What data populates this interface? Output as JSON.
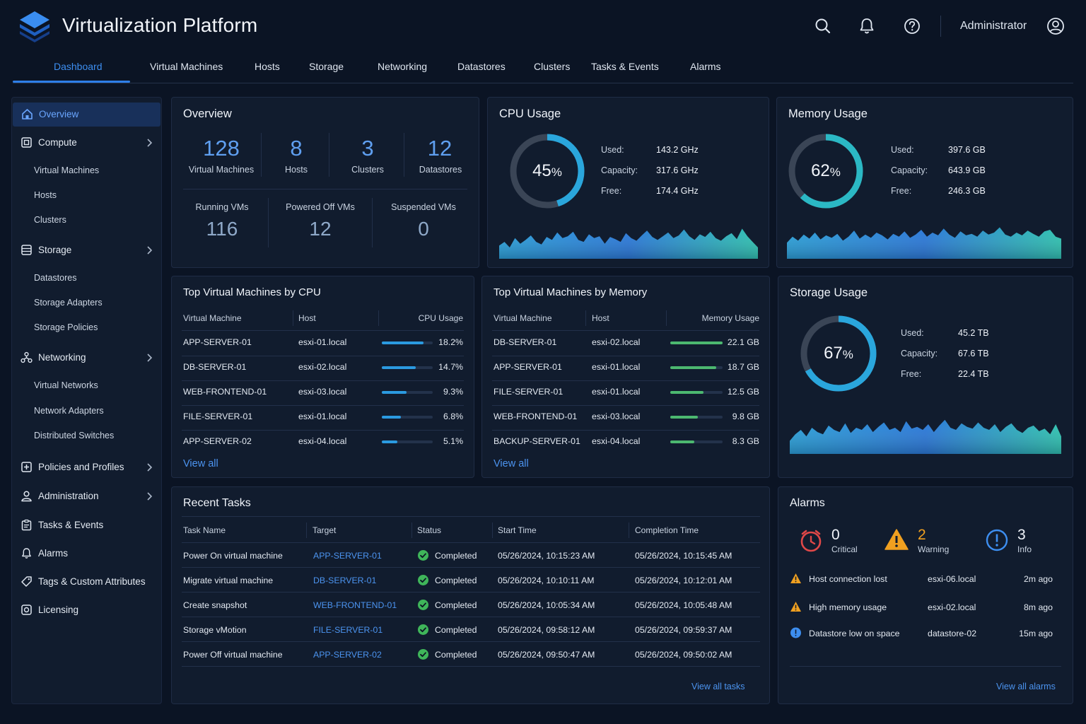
{
  "app": {
    "title": "Virtualization Platform",
    "user": "Administrator"
  },
  "header_icons": [
    "search-icon",
    "bell-icon",
    "help-icon",
    "user-avatar-icon"
  ],
  "tabs": [
    {
      "label": "Dashboard",
      "active": true
    },
    {
      "label": "Virtual Machines"
    },
    {
      "label": "Hosts"
    },
    {
      "label": "Storage"
    },
    {
      "label": "Networking"
    },
    {
      "label": "Datastores"
    },
    {
      "label": "Clusters"
    },
    {
      "label": "Tasks & Events"
    },
    {
      "label": "Alarms"
    }
  ],
  "sidebar": {
    "overview": "Overview",
    "compute": {
      "label": "Compute",
      "children": [
        "Virtual Machines",
        "Hosts",
        "Clusters"
      ]
    },
    "storage": {
      "label": "Storage",
      "children": [
        "Datastores",
        "Storage Adapters",
        "Storage Policies"
      ]
    },
    "networking": {
      "label": "Networking",
      "children": [
        "Virtual Networks",
        "Network Adapters",
        "Distributed Switches"
      ]
    },
    "policies": "Policies and Profiles",
    "administration": "Administration",
    "tasks": "Tasks & Events",
    "alarms": "Alarms",
    "tags": "Tags & Custom Attributes",
    "licensing": "Licensing"
  },
  "overview": {
    "title": "Overview",
    "stats": [
      {
        "value": "128",
        "label": "Virtual Machines"
      },
      {
        "value": "8",
        "label": "Hosts"
      },
      {
        "value": "3",
        "label": "Clusters"
      },
      {
        "value": "12",
        "label": "Datastores"
      }
    ],
    "vm_states": [
      {
        "label": "Running VMs",
        "value": "116"
      },
      {
        "label": "Powered Off VMs",
        "value": "12"
      },
      {
        "label": "Suspended VMs",
        "value": "0"
      }
    ]
  },
  "cpu": {
    "title": "CPU Usage",
    "percent": 45,
    "percent_text": "45",
    "percent_sign": "%",
    "rows": [
      {
        "k": "Used:",
        "v": "143.2 GHz"
      },
      {
        "k": "Capacity:",
        "v": "317.6 GHz"
      },
      {
        "k": "Free:",
        "v": "174.4 GHz"
      }
    ],
    "trend": [
      0.35,
      0.45,
      0.3,
      0.55,
      0.4,
      0.5,
      0.62,
      0.45,
      0.38,
      0.58,
      0.5,
      0.7,
      0.55,
      0.6,
      0.72,
      0.5,
      0.45,
      0.65,
      0.55,
      0.6,
      0.4,
      0.58,
      0.52,
      0.45,
      0.68,
      0.55,
      0.48,
      0.62,
      0.75,
      0.58,
      0.5,
      0.6,
      0.7,
      0.55,
      0.62,
      0.78,
      0.6,
      0.5,
      0.65,
      0.58,
      0.72,
      0.55,
      0.48,
      0.6,
      0.68,
      0.52,
      0.8,
      0.6,
      0.45,
      0.3
    ]
  },
  "memory": {
    "title": "Memory Usage",
    "percent": 62,
    "percent_text": "62",
    "percent_sign": "%",
    "rows": [
      {
        "k": "Used:",
        "v": "397.6 GB"
      },
      {
        "k": "Capacity:",
        "v": "643.9 GB"
      },
      {
        "k": "Free:",
        "v": "246.3 GB"
      }
    ],
    "trend": [
      0.4,
      0.55,
      0.45,
      0.6,
      0.5,
      0.65,
      0.48,
      0.58,
      0.52,
      0.62,
      0.45,
      0.55,
      0.7,
      0.5,
      0.6,
      0.52,
      0.65,
      0.58,
      0.48,
      0.62,
      0.55,
      0.68,
      0.52,
      0.6,
      0.72,
      0.55,
      0.65,
      0.58,
      0.75,
      0.6,
      0.52,
      0.68,
      0.58,
      0.62,
      0.55,
      0.7,
      0.6,
      0.65,
      0.78,
      0.6,
      0.55,
      0.65,
      0.58,
      0.7,
      0.62,
      0.55,
      0.68,
      0.72,
      0.55,
      0.5
    ]
  },
  "storage": {
    "title": "Storage Usage",
    "percent": 67,
    "percent_text": "67",
    "percent_sign": "%",
    "rows": [
      {
        "k": "Used:",
        "v": "45.2 TB"
      },
      {
        "k": "Capacity:",
        "v": "67.6 TB"
      },
      {
        "k": "Free:",
        "v": "22.4 TB"
      }
    ],
    "trend": [
      0.3,
      0.45,
      0.55,
      0.4,
      0.6,
      0.5,
      0.45,
      0.65,
      0.55,
      0.5,
      0.7,
      0.48,
      0.6,
      0.55,
      0.68,
      0.5,
      0.62,
      0.72,
      0.55,
      0.6,
      0.5,
      0.75,
      0.58,
      0.62,
      0.55,
      0.68,
      0.5,
      0.65,
      0.78,
      0.6,
      0.55,
      0.7,
      0.62,
      0.58,
      0.72,
      0.6,
      0.55,
      0.68,
      0.5,
      0.62,
      0.7,
      0.55,
      0.48,
      0.6,
      0.65,
      0.52,
      0.58,
      0.45,
      0.68,
      0.4
    ]
  },
  "top_cpu": {
    "title": "Top Virtual Machines by CPU",
    "headers": [
      "Virtual Machine",
      "Host",
      "CPU Usage"
    ],
    "rows": [
      {
        "vm": "APP-SERVER-01",
        "host": "esxi-01.local",
        "value": "18.2%",
        "frac": 0.82
      },
      {
        "vm": "DB-SERVER-01",
        "host": "esxi-02.local",
        "value": "14.7%",
        "frac": 0.66
      },
      {
        "vm": "WEB-FRONTEND-01",
        "host": "esxi-03.local",
        "value": "9.3%",
        "frac": 0.49
      },
      {
        "vm": "FILE-SERVER-01",
        "host": "esxi-01.local",
        "value": "6.8%",
        "frac": 0.38
      },
      {
        "vm": "APP-SERVER-02",
        "host": "esxi-04.local",
        "value": "5.1%",
        "frac": 0.31
      }
    ],
    "view_all": "View all"
  },
  "top_mem": {
    "title": "Top Virtual Machines by Memory",
    "headers": [
      "Virtual Machine",
      "Host",
      "Memory Usage"
    ],
    "rows": [
      {
        "vm": "DB-SERVER-01",
        "host": "esxi-02.local",
        "value": "22.1 GB",
        "frac": 1.0
      },
      {
        "vm": "APP-SERVER-01",
        "host": "esxi-01.local",
        "value": "18.7 GB",
        "frac": 0.88
      },
      {
        "vm": "FILE-SERVER-01",
        "host": "esxi-01.local",
        "value": "12.5 GB",
        "frac": 0.63
      },
      {
        "vm": "WEB-FRONTEND-01",
        "host": "esxi-03.local",
        "value": "9.8 GB",
        "frac": 0.53
      },
      {
        "vm": "BACKUP-SERVER-01",
        "host": "esxi-04.local",
        "value": "8.3 GB",
        "frac": 0.46
      }
    ],
    "view_all": "View all"
  },
  "tasks": {
    "title": "Recent Tasks",
    "headers": [
      "Task Name",
      "Target",
      "Status",
      "Start Time",
      "Completion Time"
    ],
    "rows": [
      {
        "name": "Power On virtual machine",
        "target": "APP-SERVER-01",
        "status": "Completed",
        "start": "05/26/2024, 10:15:23 AM",
        "end": "05/26/2024, 10:15:45 AM"
      },
      {
        "name": "Migrate virtual machine",
        "target": "DB-SERVER-01",
        "status": "Completed",
        "start": "05/26/2024, 10:10:11 AM",
        "end": "05/26/2024, 10:12:01 AM"
      },
      {
        "name": "Create snapshot",
        "target": "WEB-FRONTEND-01",
        "status": "Completed",
        "start": "05/26/2024, 10:05:34 AM",
        "end": "05/26/2024, 10:05:48 AM"
      },
      {
        "name": "Storage vMotion",
        "target": "FILE-SERVER-01",
        "status": "Completed",
        "start": "05/26/2024, 09:58:12 AM",
        "end": "05/26/2024, 09:59:37 AM"
      },
      {
        "name": "Power Off virtual machine",
        "target": "APP-SERVER-02",
        "status": "Completed",
        "start": "05/26/2024, 09:50:47 AM",
        "end": "05/26/2024, 09:50:02 AM"
      }
    ],
    "view_all": "View all tasks"
  },
  "alarms": {
    "title": "Alarms",
    "summary": [
      {
        "count": "0",
        "label": "Critical",
        "color": "#e04848"
      },
      {
        "count": "2",
        "label": "Warning",
        "color": "#f0a020"
      },
      {
        "count": "3",
        "label": "Info",
        "color": "#3d8ef0"
      }
    ],
    "rows": [
      {
        "severity": "warning",
        "text": "Host connection lost",
        "source": "esxi-06.local",
        "age": "2m ago"
      },
      {
        "severity": "warning",
        "text": "High memory usage",
        "source": "esxi-02.local",
        "age": "8m ago"
      },
      {
        "severity": "info",
        "text": "Datastore low on space",
        "source": "datastore-02",
        "age": "15m ago"
      }
    ],
    "view_all": "View all alarms"
  },
  "colors": {
    "accent": "#2e7fe8",
    "background": "#0b1424",
    "card": "#111c2e",
    "cpu_bar": "#2b9ae0",
    "mem_bar": "#4cb870",
    "success": "#3fb55a"
  }
}
